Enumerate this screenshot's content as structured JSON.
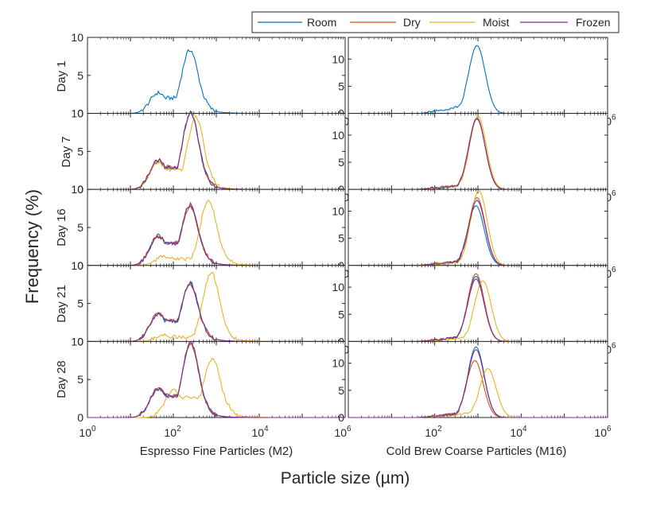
{
  "figure": {
    "ylabel": "Frequency (%)",
    "xlabel": "Particle size (µm)",
    "row_labels": [
      "Day 1",
      "Day 7",
      "Day 16",
      "Day 21",
      "Day 28"
    ],
    "column_labels": [
      "Espresso Fine Particles (M2)",
      "Cold Brew Coarse Particles (M16)"
    ],
    "x_tick_labels": [
      "10",
      "10",
      "10",
      "10"
    ],
    "x_tick_exponents": [
      "0",
      "2",
      "4",
      "6"
    ],
    "legend": [
      {
        "name": "Room",
        "color": "#0072BD"
      },
      {
        "name": "Dry",
        "color": "#D95319"
      },
      {
        "name": "Moist",
        "color": "#EDB120"
      },
      {
        "name": "Frozen",
        "color": "#7E2F8E"
      }
    ]
  },
  "chart_data": {
    "type": "line",
    "x_scale": "log",
    "xlim": [
      1,
      1000000
    ],
    "x_unit": "µm",
    "legend_placement": "top-right outside",
    "grid": false,
    "left_column": {
      "title": "Espresso Fine Particles (M2)",
      "ylim": [
        0,
        10
      ],
      "yticks": [
        0,
        5,
        10
      ]
    },
    "right_column": {
      "title": "Cold Brew Coarse Particles (M16)",
      "ylim": [
        0,
        14
      ],
      "yticks": [
        0,
        5,
        10
      ]
    },
    "panels": [
      {
        "row": "Day 1",
        "column": "Espresso Fine Particles (M2)",
        "series": [
          {
            "name": "Room",
            "peak_size": 240,
            "peak_value": 8.3,
            "shoulder_size": 45,
            "shoulder_value": 2.7
          }
        ]
      },
      {
        "row": "Day 1",
        "column": "Cold Brew Coarse Particles (M16)",
        "series": [
          {
            "name": "Room",
            "peak_size": 950,
            "peak_value": 12.5,
            "tail_size": 150,
            "tail_value": 1.5
          }
        ]
      },
      {
        "row": "Day 7",
        "column": "Espresso Fine Particles (M2)",
        "series": [
          {
            "name": "Room",
            "peak_size": 250,
            "peak_value": 10.0,
            "shoulder_size": 45,
            "shoulder_value": 3.8
          },
          {
            "name": "Dry",
            "peak_size": 250,
            "peak_value": 9.9,
            "shoulder_size": 45,
            "shoulder_value": 3.9
          },
          {
            "name": "Moist",
            "peak_size": 330,
            "peak_value": 9.5,
            "shoulder_size": 45,
            "shoulder_value": 3.5
          },
          {
            "name": "Frozen",
            "peak_size": 250,
            "peak_value": 10.0,
            "shoulder_size": 45,
            "shoulder_value": 3.9
          }
        ]
      },
      {
        "row": "Day 7",
        "column": "Cold Brew Coarse Particles (M16)",
        "series": [
          {
            "name": "Room",
            "peak_size": 950,
            "peak_value": 13.0
          },
          {
            "name": "Dry",
            "peak_size": 950,
            "peak_value": 13.2
          },
          {
            "name": "Moist",
            "peak_size": 1000,
            "peak_value": 13.5
          },
          {
            "name": "Frozen",
            "peak_size": 950,
            "peak_value": 13.0
          }
        ]
      },
      {
        "row": "Day 16",
        "column": "Espresso Fine Particles (M2)",
        "series": [
          {
            "name": "Room",
            "peak_size": 240,
            "peak_value": 7.8,
            "shoulder_size": 45,
            "shoulder_value": 3.9
          },
          {
            "name": "Dry",
            "peak_size": 240,
            "peak_value": 7.7,
            "shoulder_size": 45,
            "shoulder_value": 4.0
          },
          {
            "name": "Moist",
            "peak_size": 650,
            "peak_value": 8.5,
            "shoulder_size": 60,
            "shoulder_value": 1.2
          },
          {
            "name": "Frozen",
            "peak_size": 240,
            "peak_value": 7.9,
            "shoulder_size": 45,
            "shoulder_value": 3.8
          }
        ]
      },
      {
        "row": "Day 16",
        "column": "Cold Brew Coarse Particles (M16)",
        "series": [
          {
            "name": "Room",
            "peak_size": 900,
            "peak_value": 11.0
          },
          {
            "name": "Dry",
            "peak_size": 950,
            "peak_value": 12.5
          },
          {
            "name": "Moist",
            "peak_size": 1050,
            "peak_value": 13.8
          },
          {
            "name": "Frozen",
            "peak_size": 950,
            "peak_value": 12.0
          }
        ]
      },
      {
        "row": "Day 21",
        "column": "Espresso Fine Particles (M2)",
        "series": [
          {
            "name": "Room",
            "peak_size": 240,
            "peak_value": 7.7,
            "shoulder_size": 45,
            "shoulder_value": 3.6
          },
          {
            "name": "Dry",
            "peak_size": 240,
            "peak_value": 7.4,
            "shoulder_size": 45,
            "shoulder_value": 3.7
          },
          {
            "name": "Moist",
            "peak_size": 750,
            "peak_value": 9.0,
            "shoulder_size": 60,
            "shoulder_value": 0.8
          },
          {
            "name": "Frozen",
            "peak_size": 240,
            "peak_value": 7.6,
            "shoulder_size": 45,
            "shoulder_value": 3.6
          }
        ]
      },
      {
        "row": "Day 21",
        "column": "Cold Brew Coarse Particles (M16)",
        "series": [
          {
            "name": "Room",
            "peak_size": 900,
            "peak_value": 12.0
          },
          {
            "name": "Dry",
            "peak_size": 900,
            "peak_value": 12.5
          },
          {
            "name": "Moist",
            "peak_size": 1300,
            "peak_value": 11.2
          },
          {
            "name": "Frozen",
            "peak_size": 900,
            "peak_value": 11.5
          }
        ]
      },
      {
        "row": "Day 28",
        "column": "Espresso Fine Particles (M2)",
        "series": [
          {
            "name": "Room",
            "peak_size": 250,
            "peak_value": 9.7,
            "shoulder_size": 45,
            "shoulder_value": 3.8
          },
          {
            "name": "Dry",
            "peak_size": 250,
            "peak_value": 9.6,
            "shoulder_size": 45,
            "shoulder_value": 3.9
          },
          {
            "name": "Moist",
            "peak_size": 800,
            "peak_value": 7.8,
            "shoulder_size": 100,
            "shoulder_value": 3.5
          },
          {
            "name": "Frozen",
            "peak_size": 250,
            "peak_value": 9.8,
            "shoulder_size": 45,
            "shoulder_value": 3.8
          }
        ]
      },
      {
        "row": "Day 28",
        "column": "Cold Brew Coarse Particles (M16)",
        "series": [
          {
            "name": "Room",
            "peak_size": 900,
            "peak_value": 13.0
          },
          {
            "name": "Dry",
            "peak_size": 850,
            "peak_value": 10.5
          },
          {
            "name": "Moist",
            "peak_size": 1700,
            "peak_value": 9.0
          },
          {
            "name": "Frozen",
            "peak_size": 900,
            "peak_value": 12.5
          }
        ]
      }
    ]
  }
}
